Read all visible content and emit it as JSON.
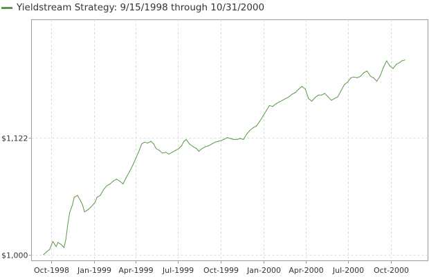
{
  "chart_data": {
    "type": "line",
    "legend_position": "top-left",
    "grid": true,
    "colors": {
      "series": "#5a9a47",
      "grid": "#dddddd",
      "axis": "#999999",
      "text": "#333333"
    },
    "x_axis": {
      "type": "date",
      "range": [
        "1998-08-20",
        "2000-12-20"
      ],
      "ticks": [
        {
          "date": "1998-10-01",
          "label": "Oct-1998"
        },
        {
          "date": "1999-01-01",
          "label": "Jan-1999"
        },
        {
          "date": "1999-04-01",
          "label": "Apr-1999"
        },
        {
          "date": "1999-07-01",
          "label": "Jul-1999"
        },
        {
          "date": "1999-10-01",
          "label": "Oct-1999"
        },
        {
          "date": "2000-01-01",
          "label": "Jan-2000"
        },
        {
          "date": "2000-04-01",
          "label": "Apr-2000"
        },
        {
          "date": "2000-07-01",
          "label": "Jul-2000"
        },
        {
          "date": "2000-10-01",
          "label": "Oct-2000"
        }
      ]
    },
    "y_axis": {
      "scale": "log",
      "range": [
        994,
        1260
      ],
      "ticks": [
        {
          "value": 1000,
          "label": "$1,000"
        },
        {
          "value": 1122,
          "label": "$1,122"
        }
      ]
    },
    "series": [
      {
        "name": "Yieldstream Strategy: 9/15/1998 through 10/31/2000",
        "points": [
          [
            "1998-09-15",
            1000
          ],
          [
            "1998-09-22",
            1003
          ],
          [
            "1998-09-28",
            1005
          ],
          [
            "1998-10-05",
            1013
          ],
          [
            "1998-10-12",
            1008
          ],
          [
            "1998-10-16",
            1012
          ],
          [
            "1998-10-23",
            1010
          ],
          [
            "1998-10-29",
            1007
          ],
          [
            "1998-11-02",
            1015
          ],
          [
            "1998-11-06",
            1030
          ],
          [
            "1998-11-10",
            1042
          ],
          [
            "1998-11-16",
            1050
          ],
          [
            "1998-11-20",
            1058
          ],
          [
            "1998-11-27",
            1060
          ],
          [
            "1998-12-03",
            1055
          ],
          [
            "1998-12-08",
            1050
          ],
          [
            "1998-12-12",
            1043
          ],
          [
            "1998-12-19",
            1045
          ],
          [
            "1998-12-26",
            1048
          ],
          [
            "1999-01-04",
            1053
          ],
          [
            "1999-01-08",
            1058
          ],
          [
            "1999-01-15",
            1060
          ],
          [
            "1999-01-22",
            1066
          ],
          [
            "1999-01-29",
            1070
          ],
          [
            "1999-02-05",
            1072
          ],
          [
            "1999-02-12",
            1075
          ],
          [
            "1999-02-19",
            1077
          ],
          [
            "1999-02-26",
            1075
          ],
          [
            "1999-03-05",
            1072
          ],
          [
            "1999-03-12",
            1079
          ],
          [
            "1999-03-19",
            1085
          ],
          [
            "1999-03-26",
            1092
          ],
          [
            "1999-04-02",
            1100
          ],
          [
            "1999-04-09",
            1108
          ],
          [
            "1999-04-14",
            1115
          ],
          [
            "1999-04-20",
            1117
          ],
          [
            "1999-04-27",
            1116
          ],
          [
            "1999-05-04",
            1118
          ],
          [
            "1999-05-10",
            1115
          ],
          [
            "1999-05-15",
            1110
          ],
          [
            "1999-05-22",
            1108
          ],
          [
            "1999-05-29",
            1105
          ],
          [
            "1999-06-05",
            1106
          ],
          [
            "1999-06-12",
            1104
          ],
          [
            "1999-06-19",
            1106
          ],
          [
            "1999-06-26",
            1108
          ],
          [
            "1999-07-03",
            1110
          ],
          [
            "1999-07-09",
            1113
          ],
          [
            "1999-07-14",
            1118
          ],
          [
            "1999-07-19",
            1120
          ],
          [
            "1999-07-26",
            1115
          ],
          [
            "1999-08-03",
            1112
          ],
          [
            "1999-08-10",
            1110
          ],
          [
            "1999-08-15",
            1107
          ],
          [
            "1999-08-22",
            1110
          ],
          [
            "1999-08-29",
            1112
          ],
          [
            "1999-09-05",
            1113
          ],
          [
            "1999-09-12",
            1115
          ],
          [
            "1999-09-19",
            1117
          ],
          [
            "1999-09-26",
            1118
          ],
          [
            "1999-10-03",
            1119
          ],
          [
            "1999-10-08",
            1120
          ],
          [
            "1999-10-15",
            1122
          ],
          [
            "1999-10-22",
            1121
          ],
          [
            "1999-10-29",
            1120
          ],
          [
            "1999-11-05",
            1120
          ],
          [
            "1999-11-12",
            1121
          ],
          [
            "1999-11-19",
            1120
          ],
          [
            "1999-11-26",
            1126
          ],
          [
            "1999-12-03",
            1130
          ],
          [
            "1999-12-10",
            1133
          ],
          [
            "1999-12-17",
            1135
          ],
          [
            "1999-12-24",
            1140
          ],
          [
            "1999-12-31",
            1146
          ],
          [
            "2000-01-07",
            1152
          ],
          [
            "2000-01-14",
            1158
          ],
          [
            "2000-01-21",
            1157
          ],
          [
            "2000-01-28",
            1160
          ],
          [
            "2000-02-04",
            1162
          ],
          [
            "2000-02-11",
            1164
          ],
          [
            "2000-02-18",
            1166
          ],
          [
            "2000-02-25",
            1168
          ],
          [
            "2000-03-03",
            1171
          ],
          [
            "2000-03-10",
            1173
          ],
          [
            "2000-03-17",
            1177
          ],
          [
            "2000-03-24",
            1180
          ],
          [
            "2000-03-31",
            1177
          ],
          [
            "2000-04-07",
            1166
          ],
          [
            "2000-04-14",
            1163
          ],
          [
            "2000-04-21",
            1167
          ],
          [
            "2000-04-28",
            1170
          ],
          [
            "2000-05-05",
            1170
          ],
          [
            "2000-05-12",
            1172
          ],
          [
            "2000-05-19",
            1168
          ],
          [
            "2000-05-26",
            1164
          ],
          [
            "2000-06-02",
            1166
          ],
          [
            "2000-06-09",
            1168
          ],
          [
            "2000-06-16",
            1175
          ],
          [
            "2000-06-23",
            1182
          ],
          [
            "2000-06-30",
            1185
          ],
          [
            "2000-07-07",
            1190
          ],
          [
            "2000-07-14",
            1191
          ],
          [
            "2000-07-21",
            1190
          ],
          [
            "2000-07-28",
            1192
          ],
          [
            "2000-08-04",
            1196
          ],
          [
            "2000-08-11",
            1198
          ],
          [
            "2000-08-18",
            1192
          ],
          [
            "2000-08-25",
            1190
          ],
          [
            "2000-09-01",
            1186
          ],
          [
            "2000-09-08",
            1192
          ],
          [
            "2000-09-15",
            1202
          ],
          [
            "2000-09-22",
            1210
          ],
          [
            "2000-09-29",
            1204
          ],
          [
            "2000-10-06",
            1201
          ],
          [
            "2000-10-13",
            1206
          ],
          [
            "2000-10-20",
            1208
          ],
          [
            "2000-10-25",
            1210
          ],
          [
            "2000-10-31",
            1211
          ]
        ]
      }
    ]
  }
}
